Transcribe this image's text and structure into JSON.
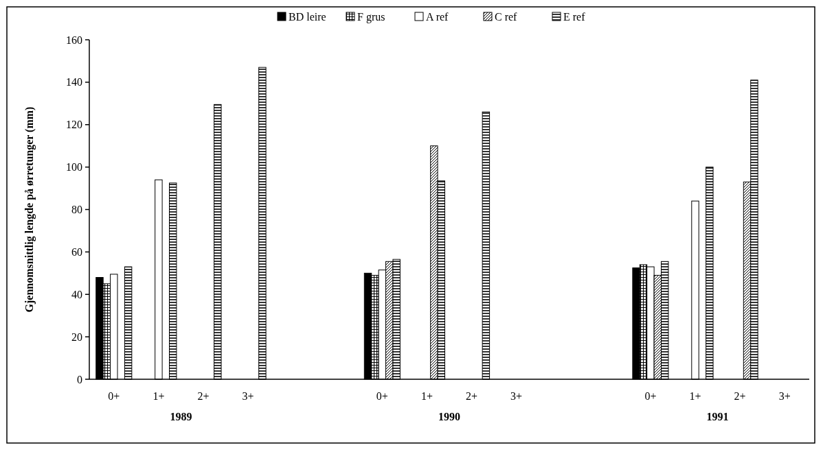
{
  "chart_data": {
    "type": "bar",
    "ylabel": "Gjennomsnittlig lengde på ørretunger (mm)",
    "categories": [
      "0+",
      "1+",
      "2+",
      "3+",
      null,
      null,
      "0+",
      "1+",
      "2+",
      "3+",
      null,
      null,
      "0+",
      "1+",
      "2+",
      "3+"
    ],
    "series": [
      {
        "name": "BD leire",
        "color": "#000000",
        "values": [
          48,
          null,
          null,
          null,
          null,
          null,
          50,
          null,
          null,
          null,
          null,
          null,
          52.5,
          null,
          null,
          null
        ]
      },
      {
        "name": "F grus",
        "color": "#000000",
        "values": [
          45,
          null,
          null,
          null,
          null,
          null,
          49,
          null,
          null,
          null,
          null,
          null,
          54,
          null,
          null,
          null
        ]
      },
      {
        "name": "A ref",
        "color": "#000000",
        "values": [
          49.5,
          94,
          null,
          null,
          null,
          null,
          51.5,
          null,
          null,
          null,
          null,
          null,
          53,
          84,
          null,
          null
        ]
      },
      {
        "name": "C ref",
        "color": "#000000",
        "values": [
          null,
          null,
          null,
          null,
          null,
          null,
          55.5,
          110,
          null,
          null,
          null,
          null,
          49,
          null,
          93,
          null
        ]
      },
      {
        "name": "E ref",
        "color": "#000000",
        "values": [
          53,
          92.5,
          129.5,
          147,
          null,
          null,
          56.5,
          93.5,
          126,
          null,
          null,
          null,
          55.5,
          100,
          141,
          null
        ]
      }
    ],
    "annotations": [
      "1989",
      "1990",
      "1991"
    ],
    "ylim": [
      0,
      160
    ],
    "yticks": [
      0,
      20,
      40,
      60,
      80,
      100,
      120,
      140,
      160
    ],
    "legend": "top",
    "grid": false
  }
}
